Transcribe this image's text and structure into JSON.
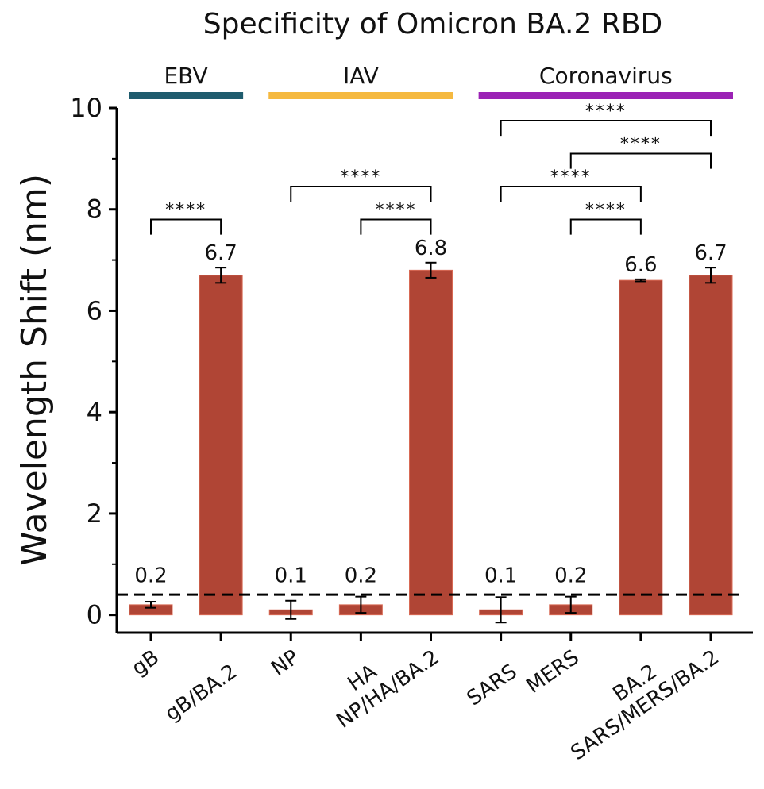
{
  "chart_data": {
    "type": "bar",
    "title": "Specificity of Omicron BA.2 RBD",
    "xlabel": "",
    "ylabel": "Wavelength Shift (nm)",
    "ylim": [
      -0.35,
      10
    ],
    "yticks": [
      0,
      2,
      4,
      6,
      8,
      10
    ],
    "grid": false,
    "categories": [
      "gB",
      "gB/BA.2",
      "NP",
      "HA",
      "NP/HA/BA.2",
      "SARS",
      "MERS",
      "BA.2",
      "SARS/MERS/BA.2"
    ],
    "values": [
      0.2,
      6.7,
      0.1,
      0.2,
      6.8,
      0.1,
      0.2,
      6.6,
      6.7
    ],
    "errors": [
      0.06,
      0.15,
      0.18,
      0.16,
      0.15,
      0.25,
      0.16,
      0.02,
      0.15
    ],
    "data_labels": [
      "0.2",
      "6.7",
      "0.1",
      "0.2",
      "6.8",
      "0.1",
      "0.2",
      "6.6",
      "6.7"
    ],
    "bar_color": "#b04535",
    "threshold": 0.4,
    "groups": [
      {
        "label": "EBV",
        "color": "#1f5c6e",
        "from": 0,
        "to": 1
      },
      {
        "label": "IAV",
        "color": "#f5b940",
        "from": 2,
        "to": 4
      },
      {
        "label": "Coronavirus",
        "color": "#9b22b5",
        "from": 5,
        "to": 8
      }
    ],
    "significance": [
      {
        "from": 0,
        "to": 1,
        "y": 7.8,
        "label": "****"
      },
      {
        "from": 2,
        "to": 4,
        "y": 8.45,
        "label": "****"
      },
      {
        "from": 3,
        "to": 4,
        "y": 7.8,
        "label": "****"
      },
      {
        "from": 5,
        "to": 8,
        "y": 9.75,
        "label": "****"
      },
      {
        "from": 6,
        "to": 8,
        "y": 9.1,
        "label": "****"
      },
      {
        "from": 5,
        "to": 7,
        "y": 8.45,
        "label": "****"
      },
      {
        "from": 6,
        "to": 7,
        "y": 7.8,
        "label": "****"
      }
    ]
  }
}
